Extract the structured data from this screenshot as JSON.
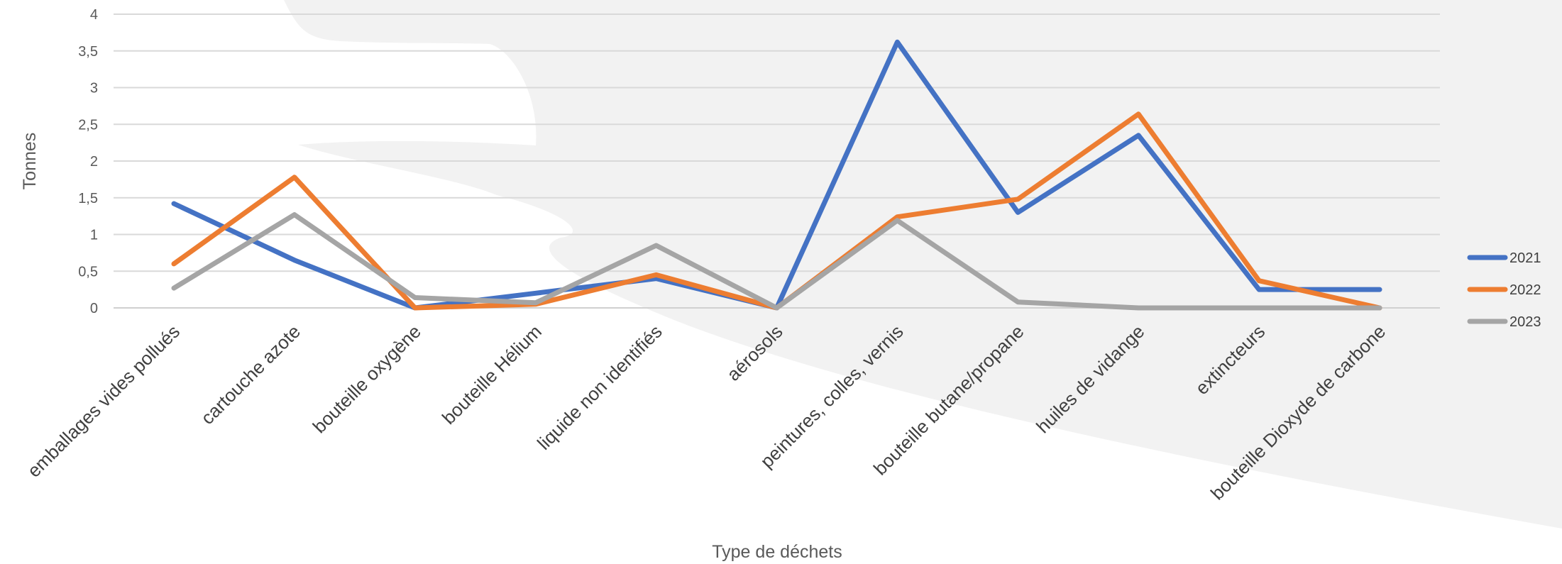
{
  "chart_data": {
    "type": "line",
    "title": "",
    "xlabel": "Type de déchets",
    "ylabel": "Tonnes",
    "ylim": [
      0,
      4
    ],
    "yticks": [
      "0",
      "0,5",
      "1",
      "1,5",
      "2",
      "2,5",
      "3",
      "3,5",
      "4"
    ],
    "grid": true,
    "legend_position": "right",
    "categories": [
      "emballages vides pollués",
      "cartouche azote",
      "bouteille oxygène",
      "bouteille Hélium",
      "liquide non identifiés",
      "aérosols",
      "peintures, colles, vernis",
      "bouteille butane/propane",
      "huiles de vidange",
      "extincteurs",
      "bouteille Dioxyde de carbone"
    ],
    "series": [
      {
        "name": "2021",
        "color": "#4472C4",
        "values": [
          1.42,
          0.65,
          0.0,
          0.2,
          0.4,
          0.0,
          3.62,
          1.3,
          2.35,
          0.25,
          0.25
        ]
      },
      {
        "name": "2022",
        "color": "#ED7D31",
        "values": [
          0.6,
          1.78,
          0.0,
          0.05,
          0.45,
          0.0,
          1.24,
          1.48,
          2.64,
          0.37,
          0.0
        ]
      },
      {
        "name": "2023",
        "color": "#A5A5A5",
        "values": [
          0.27,
          1.27,
          0.14,
          0.07,
          0.85,
          0.0,
          1.19,
          0.08,
          0.0,
          0.0,
          0.0
        ]
      }
    ]
  }
}
